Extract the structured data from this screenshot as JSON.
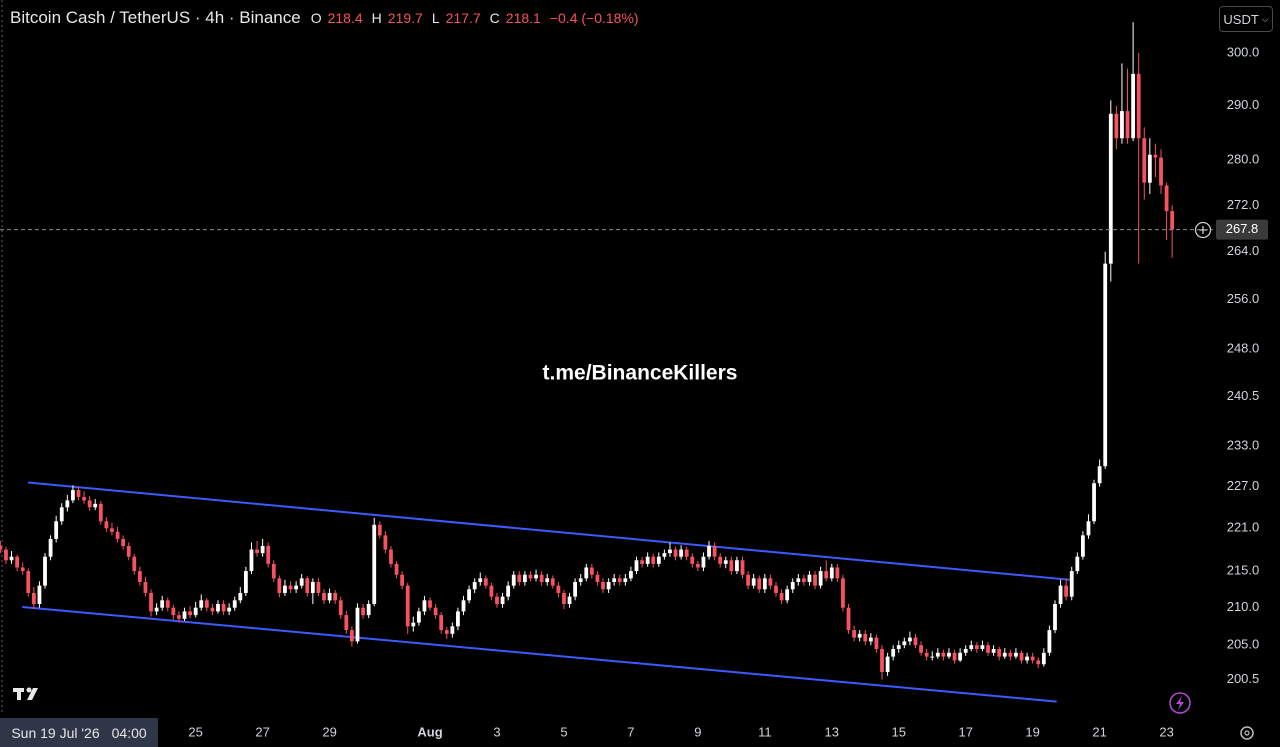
{
  "chart_data": {
    "type": "candlestick",
    "title": "Bitcoin Cash / TetherUS · 4h · Binance",
    "legend": [
      {
        "key": "O",
        "value": 218.4
      },
      {
        "key": "H",
        "value": 219.7
      },
      {
        "key": "L",
        "value": 217.7
      },
      {
        "key": "C",
        "value": 218.1
      }
    ],
    "change": "−0.4 (−0.18%)",
    "legend_color": "#f7525f",
    "currency": "USDT",
    "watermark": "t.me/BinanceKillers",
    "crosshair_date": "Sun 19 Jul '26",
    "crosshair_time": "04:00",
    "up_color": "#ffffff",
    "down_color": "#f7525f",
    "log_y": true,
    "grid": false,
    "ylim": [
      196,
      310.4
    ],
    "yticks": [
      {
        "value": 300,
        "label": "300.0"
      },
      {
        "value": 290,
        "label": "290.0"
      },
      {
        "value": 280,
        "label": "280.0"
      },
      {
        "value": 272,
        "label": "272.0"
      },
      {
        "value": 264,
        "label": "264.0"
      },
      {
        "value": 256,
        "label": "256.0"
      },
      {
        "value": 248,
        "label": "248.0"
      },
      240.5,
      {
        "value": 233,
        "label": "233.0"
      },
      {
        "value": 227,
        "label": "227.0"
      },
      {
        "value": 221,
        "label": "221.0"
      },
      {
        "value": 215,
        "label": "215.0"
      },
      {
        "value": 210,
        "label": "210.0"
      },
      {
        "value": 205,
        "label": "205.0"
      },
      200.5
    ],
    "categories": [
      null,
      null,
      null,
      null,
      null,
      null,
      null,
      null,
      null,
      null,
      null,
      null,
      null,
      null,
      null,
      null,
      null,
      null,
      null,
      null,
      null,
      null,
      null,
      null,
      null,
      null,
      null,
      null,
      null,
      null,
      null,
      null,
      null,
      null,
      null,
      null,
      "25",
      null,
      null,
      null,
      null,
      null,
      null,
      null,
      null,
      null,
      null,
      null,
      "27",
      null,
      null,
      null,
      null,
      null,
      null,
      null,
      null,
      null,
      null,
      null,
      "29",
      null,
      null,
      null,
      null,
      null,
      null,
      null,
      null,
      null,
      null,
      null,
      null,
      null,
      null,
      null,
      null,
      null,
      "Aug",
      null,
      null,
      null,
      null,
      null,
      null,
      null,
      null,
      null,
      null,
      null,
      "3",
      null,
      null,
      null,
      null,
      null,
      null,
      null,
      null,
      null,
      null,
      null,
      "5",
      null,
      null,
      null,
      null,
      null,
      null,
      null,
      null,
      null,
      null,
      null,
      "7",
      null,
      null,
      null,
      null,
      null,
      null,
      null,
      null,
      null,
      null,
      null,
      "9",
      null,
      null,
      null,
      null,
      null,
      null,
      null,
      null,
      null,
      null,
      null,
      "11",
      null,
      null,
      null,
      null,
      null,
      null,
      null,
      null,
      null,
      null,
      null,
      "13",
      null,
      null,
      null,
      null,
      null,
      null,
      null,
      null,
      null,
      null,
      null,
      "15",
      null,
      null,
      null,
      null,
      null,
      null,
      null,
      null,
      null,
      null,
      null,
      "17",
      null,
      null,
      null,
      null,
      null,
      null,
      null,
      null,
      null,
      null,
      null,
      "19",
      null,
      null,
      null,
      null,
      null,
      null,
      null,
      null,
      null,
      null,
      null,
      "21",
      null,
      null,
      null,
      null,
      null,
      null,
      null,
      null,
      null,
      null,
      null,
      "23",
      null
    ],
    "ohlc": [
      [
        219,
        219.8,
        218,
        218.5
      ],
      [
        218.5,
        219.2,
        217.5,
        218
      ],
      [
        218,
        218.4,
        216,
        216.5
      ],
      [
        216.5,
        217.8,
        216,
        217
      ],
      [
        217,
        217.3,
        215,
        215.5
      ],
      [
        215.5,
        216.2,
        214.5,
        215
      ],
      [
        215,
        215.4,
        211.5,
        212
      ],
      [
        212,
        212.8,
        209.8,
        210.5
      ],
      [
        210.5,
        213.6,
        210,
        213
      ],
      [
        213,
        217.5,
        212.6,
        217
      ],
      [
        217,
        220,
        216.5,
        219.5
      ],
      [
        219.5,
        222.8,
        219,
        222
      ],
      [
        222,
        224.6,
        221.5,
        224
      ],
      [
        224,
        225.8,
        223.4,
        225
      ],
      [
        225,
        227.2,
        224.6,
        226.5
      ],
      [
        226.5,
        227,
        225,
        225.5
      ],
      [
        225.5,
        226.3,
        224.5,
        225
      ],
      [
        225,
        225.6,
        223.5,
        224
      ],
      [
        224,
        225.2,
        223.6,
        224.5
      ],
      [
        224.5,
        224.9,
        221.5,
        222
      ],
      [
        222,
        222.6,
        220.5,
        221
      ],
      [
        221,
        221.8,
        220,
        220.5
      ],
      [
        220.5,
        221.2,
        219,
        219.5
      ],
      [
        219.5,
        220,
        218,
        218.5
      ],
      [
        218.5,
        219,
        216.5,
        217
      ],
      [
        217,
        217.4,
        214.5,
        215
      ],
      [
        215,
        215.6,
        213,
        213.5
      ],
      [
        213.5,
        214.2,
        211.5,
        212
      ],
      [
        212,
        212.5,
        208.8,
        209.5
      ],
      [
        209.5,
        210.6,
        209,
        210
      ],
      [
        210,
        211.6,
        209.6,
        211
      ],
      [
        211,
        211.4,
        209.5,
        210
      ],
      [
        210,
        210.4,
        208.4,
        209
      ],
      [
        209,
        209.5,
        208,
        208.5
      ],
      [
        208.5,
        210,
        208.2,
        209.5
      ],
      [
        209.5,
        210.2,
        208.6,
        209
      ],
      [
        209,
        210.8,
        208.7,
        210
      ],
      [
        210,
        211.8,
        209.6,
        211
      ],
      [
        211,
        211.3,
        209.5,
        210
      ],
      [
        210,
        210.5,
        209,
        209.5
      ],
      [
        209.5,
        211,
        209.2,
        210.5
      ],
      [
        210.5,
        211,
        209,
        209.5
      ],
      [
        209.5,
        210.6,
        209,
        210
      ],
      [
        210,
        211.5,
        209.6,
        211
      ],
      [
        211,
        212.8,
        210.6,
        212
      ],
      [
        212,
        215.6,
        211.6,
        215
      ],
      [
        215,
        219,
        214.6,
        218
      ],
      [
        218,
        219.2,
        217,
        217.5
      ],
      [
        217.5,
        219.5,
        217,
        218.5
      ],
      [
        218.5,
        219,
        215.5,
        216
      ],
      [
        216,
        216.5,
        213.5,
        214
      ],
      [
        214,
        214.4,
        211.4,
        212
      ],
      [
        212,
        213.8,
        211.6,
        213
      ],
      [
        213,
        213.6,
        212,
        212.5
      ],
      [
        212.5,
        213.6,
        212,
        213
      ],
      [
        213,
        214.6,
        212.6,
        214
      ],
      [
        214,
        214.3,
        211.5,
        212
      ],
      [
        212,
        214,
        210.5,
        213.5
      ],
      [
        213.5,
        214,
        211.6,
        212
      ],
      [
        212,
        212.5,
        210.5,
        211
      ],
      [
        211,
        212.6,
        210.6,
        212
      ],
      [
        212,
        212.4,
        210.5,
        211
      ],
      [
        211,
        211.5,
        208.5,
        209
      ],
      [
        209,
        209.6,
        206.5,
        207
      ],
      [
        207,
        207.5,
        204.8,
        205.5
      ],
      [
        205.5,
        210.6,
        205.2,
        210
      ],
      [
        210,
        210.5,
        208.5,
        209
      ],
      [
        209,
        211,
        208.6,
        210.5
      ],
      [
        210.5,
        222.5,
        210.2,
        221.5
      ],
      [
        221.5,
        222,
        219.6,
        220
      ],
      [
        220,
        220.6,
        217.5,
        218
      ],
      [
        218,
        218.5,
        215.5,
        216
      ],
      [
        216,
        216.4,
        214,
        214.5
      ],
      [
        214.5,
        215,
        212.5,
        213
      ],
      [
        213,
        213.4,
        206.5,
        207.5
      ],
      [
        207.5,
        208.8,
        206.8,
        208
      ],
      [
        208,
        210,
        207.6,
        209.5
      ],
      [
        209.5,
        211.6,
        209,
        211
      ],
      [
        211,
        211.4,
        209.6,
        210
      ],
      [
        210,
        210.5,
        208.5,
        209
      ],
      [
        209,
        209.4,
        206.5,
        207
      ],
      [
        207,
        207.4,
        205.8,
        206.5
      ],
      [
        206.5,
        208,
        206,
        207.5
      ],
      [
        207.5,
        210,
        207,
        209.5
      ],
      [
        209.5,
        211.6,
        209,
        211
      ],
      [
        211,
        213,
        210.6,
        212.5
      ],
      [
        212.5,
        214,
        212,
        213.5
      ],
      [
        213.5,
        214.8,
        213,
        214
      ],
      [
        214,
        214.4,
        212.6,
        213
      ],
      [
        213,
        213.4,
        211,
        211.5
      ],
      [
        211.5,
        212,
        210,
        210.5
      ],
      [
        210.5,
        212,
        210,
        211.5
      ],
      [
        211.5,
        213.6,
        211,
        213
      ],
      [
        213,
        215,
        212.6,
        214.5
      ],
      [
        214.5,
        215,
        213,
        213.5
      ],
      [
        213.5,
        215,
        213,
        214.5
      ],
      [
        214.5,
        215,
        213.6,
        214
      ],
      [
        214,
        215.2,
        213.6,
        214.5
      ],
      [
        214.5,
        215,
        213,
        213.5
      ],
      [
        213.5,
        214.6,
        213,
        214
      ],
      [
        214,
        214.4,
        212.6,
        213
      ],
      [
        213,
        213.5,
        211.4,
        212
      ],
      [
        212,
        212.4,
        209.8,
        210.5
      ],
      [
        210.5,
        212,
        210,
        211.5
      ],
      [
        211.5,
        214,
        211,
        213.5
      ],
      [
        213.5,
        214.6,
        213,
        214
      ],
      [
        214,
        216,
        213.6,
        215.5
      ],
      [
        215.5,
        216,
        214,
        214.5
      ],
      [
        214.5,
        215,
        213,
        213.5
      ],
      [
        213.5,
        214,
        212,
        212.5
      ],
      [
        212.5,
        214,
        212,
        213.5
      ],
      [
        213.5,
        214.6,
        213,
        214
      ],
      [
        214,
        214.5,
        213,
        213.5
      ],
      [
        213.5,
        214.6,
        213,
        214
      ],
      [
        214,
        215.6,
        213.6,
        215
      ],
      [
        215,
        217,
        214.6,
        216.5
      ],
      [
        216.5,
        217,
        215.5,
        216
      ],
      [
        216,
        217.6,
        215.6,
        217
      ],
      [
        217,
        217.4,
        215.5,
        216
      ],
      [
        216,
        217.6,
        215.6,
        217
      ],
      [
        217,
        218,
        216.6,
        217.5
      ],
      [
        217.5,
        219,
        217,
        218
      ],
      [
        218,
        218.4,
        216.5,
        217
      ],
      [
        217,
        218.6,
        216.6,
        218
      ],
      [
        218,
        218.4,
        216.5,
        217
      ],
      [
        217,
        217.5,
        215.5,
        216
      ],
      [
        216,
        216.4,
        215,
        215.5
      ],
      [
        215.5,
        217.6,
        215,
        217
      ],
      [
        217,
        219.2,
        216.6,
        218.5
      ],
      [
        218.5,
        219,
        216.5,
        217
      ],
      [
        217,
        217.5,
        215.5,
        216
      ],
      [
        216,
        217,
        215.4,
        216.5
      ],
      [
        216.5,
        217,
        214.5,
        215
      ],
      [
        215,
        217,
        214.6,
        216.5
      ],
      [
        216.5,
        217,
        214,
        214.5
      ],
      [
        214.5,
        215,
        212.5,
        213
      ],
      [
        213,
        214.6,
        212.6,
        214
      ],
      [
        214,
        214.4,
        212,
        212.5
      ],
      [
        212.5,
        214.6,
        212,
        214
      ],
      [
        214,
        214.5,
        212.5,
        213
      ],
      [
        213,
        213.5,
        211.5,
        212
      ],
      [
        212,
        212.5,
        210.5,
        211
      ],
      [
        211,
        213,
        210.6,
        212.5
      ],
      [
        212.5,
        214,
        212,
        213.5
      ],
      [
        213.5,
        214.6,
        213,
        214
      ],
      [
        214,
        214.5,
        213,
        213.5
      ],
      [
        213.5,
        215,
        213,
        214.5
      ],
      [
        214.5,
        215,
        212.5,
        213
      ],
      [
        213,
        215.6,
        212.6,
        215
      ],
      [
        215,
        216.5,
        213.6,
        214
      ],
      [
        214,
        216,
        213.6,
        215.5
      ],
      [
        215.5,
        216,
        213.5,
        214
      ],
      [
        214,
        214.5,
        209.5,
        210
      ],
      [
        210,
        210.5,
        206.5,
        207
      ],
      [
        207,
        207.6,
        205.5,
        206
      ],
      [
        206,
        207,
        205.5,
        206.5
      ],
      [
        206.5,
        207,
        205,
        205.5
      ],
      [
        205.5,
        206.6,
        205,
        206
      ],
      [
        206,
        206.4,
        204,
        204.5
      ],
      [
        204.5,
        205,
        200.5,
        201.5
      ],
      [
        201.5,
        204,
        201,
        203.5
      ],
      [
        203.5,
        205,
        203,
        204.5
      ],
      [
        204.5,
        205.6,
        204,
        205
      ],
      [
        205,
        206,
        204.6,
        205.5
      ],
      [
        205.5,
        206.8,
        205,
        206
      ],
      [
        206,
        206.5,
        204.6,
        205
      ],
      [
        205,
        205.5,
        203.6,
        204
      ],
      [
        204,
        204.5,
        203,
        203.5
      ],
      [
        203.5,
        204.2,
        203,
        203.5
      ],
      [
        203.5,
        204.6,
        203.2,
        204
      ],
      [
        204,
        204.4,
        203,
        203.5
      ],
      [
        203.5,
        204.6,
        203.2,
        204
      ],
      [
        204,
        204.4,
        202.6,
        203
      ],
      [
        203,
        204.6,
        202.8,
        204
      ],
      [
        204,
        205,
        203.6,
        204.5
      ],
      [
        204.5,
        205.6,
        204.2,
        205
      ],
      [
        205,
        205.4,
        204,
        204.5
      ],
      [
        204.5,
        205.6,
        204.2,
        205
      ],
      [
        205,
        205.4,
        203.6,
        204
      ],
      [
        204,
        205,
        203.6,
        204.5
      ],
      [
        204.5,
        204.8,
        203,
        203.5
      ],
      [
        203.5,
        204.6,
        203.2,
        204
      ],
      [
        204,
        204.4,
        203,
        203.5
      ],
      [
        203.5,
        204.6,
        203.2,
        204
      ],
      [
        204,
        204.3,
        202.6,
        203
      ],
      [
        203,
        204,
        202.6,
        203.5
      ],
      [
        203.5,
        204,
        202.6,
        203
      ],
      [
        203,
        203.4,
        202,
        202.5
      ],
      [
        202.5,
        204.6,
        202.2,
        204
      ],
      [
        204,
        207.6,
        203.6,
        207
      ],
      [
        207,
        211,
        206.6,
        210.5
      ],
      [
        210.5,
        213.8,
        210,
        213
      ],
      [
        213,
        214,
        211,
        211.5
      ],
      [
        211.5,
        215.6,
        211,
        215
      ],
      [
        215,
        217.6,
        214.6,
        217
      ],
      [
        217,
        220.6,
        216.6,
        220
      ],
      [
        220,
        223,
        219.5,
        222
      ],
      [
        222,
        228,
        221.6,
        227.5
      ],
      [
        227.5,
        231,
        227,
        230
      ],
      [
        230,
        264,
        229.6,
        262
      ],
      [
        262,
        291,
        259,
        288.5
      ],
      [
        288.5,
        290,
        282,
        284
      ],
      [
        284,
        298,
        283,
        289
      ],
      [
        289,
        297,
        283,
        284
      ],
      [
        284,
        306,
        283.5,
        296
      ],
      [
        296,
        300,
        262,
        284
      ],
      [
        284,
        286,
        273,
        276
      ],
      [
        276,
        284,
        274,
        281
      ],
      [
        281,
        283,
        277,
        280.5
      ],
      [
        280.5,
        282,
        274,
        275.5
      ],
      [
        275.5,
        276,
        266,
        271
      ],
      [
        271,
        272,
        263,
        267.8
      ]
    ],
    "trendlines": [
      {
        "color": "#3d5afe",
        "points": [
          {
            "bar": 5.95,
            "price": 227.6
          },
          {
            "bar": 192.7,
            "price": 213.8
          }
        ]
      },
      {
        "color": "#3d5afe",
        "points": [
          {
            "bar": 4.9,
            "price": 210.1
          },
          {
            "bar": 190.3,
            "price": 197.7
          }
        ]
      }
    ]
  }
}
